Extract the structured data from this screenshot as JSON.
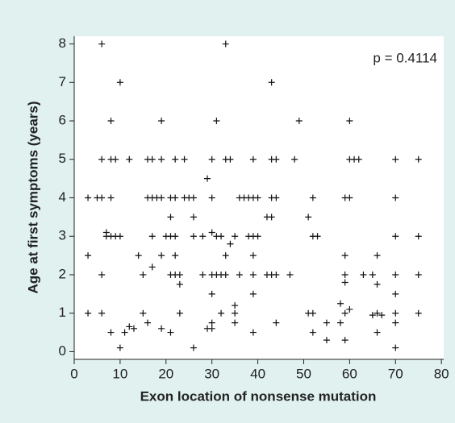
{
  "chart_data": {
    "type": "scatter",
    "xlabel": "Exon location of nonsense mutation",
    "ylabel": "Age at first symptoms (years)",
    "annotation": "p = 0.4114",
    "color": "#111111",
    "xlim": [
      0,
      80.5
    ],
    "ylim": [
      -0.2,
      8.2
    ],
    "xticks": [
      0,
      10,
      20,
      30,
      40,
      50,
      60,
      70,
      80
    ],
    "yticks": [
      0,
      1,
      2,
      3,
      4,
      5,
      6,
      7,
      8
    ],
    "x": [
      3,
      3,
      3,
      6,
      5,
      6,
      6,
      6,
      6,
      7,
      7,
      8,
      8,
      9,
      8,
      8,
      9,
      10,
      8,
      10,
      10,
      11,
      12,
      12,
      13,
      14,
      15,
      15,
      16,
      17,
      16,
      17,
      16,
      17,
      17,
      18,
      19,
      19,
      19,
      19,
      19,
      20,
      21,
      21,
      21,
      21,
      22,
      23,
      21,
      22,
      22,
      22,
      22,
      23,
      23,
      24,
      24,
      25,
      26,
      26,
      26,
      26,
      28,
      28,
      29,
      30,
      29,
      30,
      30,
      30,
      30,
      30,
      30,
      31,
      32,
      31,
      32,
      33,
      31,
      32,
      33,
      33,
      33,
      34,
      34,
      35,
      35,
      35,
      35,
      36,
      37,
      38,
      36,
      38,
      39,
      39,
      39,
      40,
      39,
      40,
      39,
      39,
      39,
      42,
      43,
      42,
      43,
      44,
      43,
      43,
      43,
      44,
      44,
      44,
      47,
      48,
      49,
      51,
      51,
      52,
      52,
      52,
      53,
      52,
      55,
      55,
      58,
      58,
      59,
      59,
      59,
      59,
      59,
      60,
      59,
      60,
      60,
      60,
      61,
      62,
      63,
      65,
      65,
      66,
      66,
      66,
      66,
      67,
      70,
      70,
      70,
      70,
      70,
      70,
      70,
      70,
      75,
      75,
      75,
      75
    ],
    "values": [
      1,
      2.5,
      4,
      8,
      4,
      4,
      5,
      2,
      1,
      3.1,
      3,
      6,
      5,
      5,
      4,
      3,
      3,
      3,
      0.5,
      7,
      0.1,
      0.5,
      5,
      0.65,
      0.6,
      2.5,
      1,
      2,
      4,
      4,
      5,
      5,
      0.75,
      2.2,
      3,
      4,
      4,
      6,
      5,
      2.5,
      0.6,
      3,
      3,
      4,
      3.5,
      2,
      2,
      2,
      0.5,
      5,
      4,
      3,
      2.5,
      1.75,
      1,
      5,
      4,
      4,
      4,
      3,
      3.5,
      0.1,
      2,
      3,
      0.6,
      0.6,
      4.5,
      5,
      4,
      3.1,
      2,
      1.5,
      0.75,
      3,
      3,
      2,
      2,
      2,
      6,
      1,
      8,
      2.5,
      5,
      5,
      2.8,
      3,
      1.2,
      1,
      0.75,
      4,
      4,
      4,
      2,
      3,
      2,
      5,
      4,
      4,
      3,
      3,
      2.5,
      1.5,
      0.5,
      3.5,
      3.5,
      2,
      2,
      2,
      7,
      5,
      4,
      4,
      5,
      0.75,
      2,
      5,
      6,
      3.5,
      1,
      1,
      4,
      3,
      3,
      0.5,
      0.75,
      0.3,
      1.25,
      0.75,
      2,
      1.8,
      2.5,
      1,
      0.3,
      1.1,
      4,
      4,
      6,
      5,
      5,
      5,
      2,
      2,
      0.95,
      2.5,
      1.75,
      1,
      0.5,
      0.95,
      5,
      4,
      3,
      2,
      1.5,
      1,
      0.75,
      0.1,
      5,
      3,
      2,
      1
    ]
  }
}
